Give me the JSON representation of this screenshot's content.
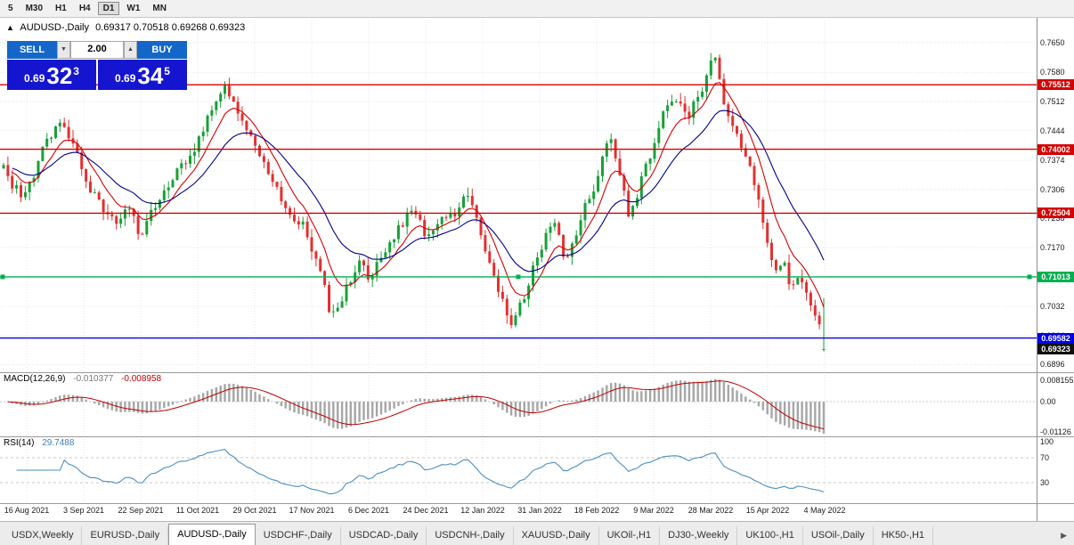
{
  "toolbar": {
    "timeframes": [
      "5",
      "M30",
      "H1",
      "H4",
      "D1",
      "W1",
      "MN"
    ],
    "active": "D1"
  },
  "header": {
    "arrow": "▲",
    "symbol": "AUDUSD-,Daily",
    "ohlc": "0.69317 0.70518 0.69268 0.69323"
  },
  "trade_panel": {
    "sell_label": "SELL",
    "buy_label": "BUY",
    "volume": "2.00",
    "spinner_down": "▼",
    "spinner_up": "▲",
    "sell_price_small": "0.69",
    "sell_price_big": "32",
    "sell_price_sup": "3",
    "buy_price_small": "0.69",
    "buy_price_big": "34",
    "buy_price_sup": "5"
  },
  "price_axis": {
    "labels": [
      {
        "text": "0.7650",
        "price": 0.765
      },
      {
        "text": "0.7580",
        "price": 0.758
      },
      {
        "text": "0.7512",
        "price": 0.7512
      },
      {
        "text": "0.7444",
        "price": 0.7444
      },
      {
        "text": "0.7374",
        "price": 0.7374
      },
      {
        "text": "0.7306",
        "price": 0.7306
      },
      {
        "text": "0.7238",
        "price": 0.7238
      },
      {
        "text": "0.7170",
        "price": 0.717
      },
      {
        "text": "0.7102",
        "price": 0.7102
      },
      {
        "text": "0.7032",
        "price": 0.7032
      },
      {
        "text": "0.6964",
        "price": 0.6964
      },
      {
        "text": "0.6896",
        "price": 0.6896
      }
    ]
  },
  "levels": [
    {
      "label": "0.75512",
      "price": 0.75512,
      "color": "#d40000",
      "handles": false
    },
    {
      "label": "0.74002",
      "price": 0.74002,
      "color": "#d40000",
      "handles": false
    },
    {
      "label": "0.72504",
      "price": 0.72504,
      "color": "#d40000",
      "handles": false
    },
    {
      "label": "0.71013",
      "price": 0.71013,
      "color": "#00b050",
      "handles": true
    },
    {
      "label": "0.69582",
      "price": 0.69582,
      "color": "#0000e8",
      "handles": false
    }
  ],
  "current_price": {
    "label": "0.69323",
    "price": 0.69323,
    "color": "#101010"
  },
  "macd_panel": {
    "title": "MACD(12,26,9)",
    "value_main": "-0.010377",
    "value_signal": "-0.008958",
    "axis": [
      "0.008155",
      "0.00",
      "-0.01126"
    ]
  },
  "rsi_panel": {
    "title": "RSI(14)",
    "value": "29.7488",
    "axis": [
      "100",
      "70",
      "30"
    ]
  },
  "dates": [
    "16 Aug 2021",
    "3 Sep 2021",
    "22 Sep 2021",
    "11 Oct 2021",
    "29 Oct 2021",
    "17 Nov 2021",
    "6 Dec 2021",
    "24 Dec 2021",
    "12 Jan 2022",
    "31 Jan 2022",
    "18 Feb 2022",
    "9 Mar 2022",
    "28 Mar 2022",
    "15 Apr 2022",
    "4 May 2022"
  ],
  "tabs": {
    "items": [
      "USDX,Weekly",
      "EURUSD-,Daily",
      "AUDUSD-,Daily",
      "USDCHF-,Daily",
      "USDCAD-,Daily",
      "USDCNH-,Daily",
      "XAUUSD-,Daily",
      "UKOil-,H1",
      "DJ30-,Weekly",
      "UK100-,H1",
      "USOil-,Daily",
      "HK50-,H1"
    ],
    "active_index": 2,
    "scroll_right_icon": "▶"
  },
  "colors": {
    "bull": "#18a038",
    "bear": "#e33030",
    "macd_hist": "#a6a6a6",
    "macd_signal": "#c00000",
    "rsi_line": "#4a8fc2",
    "grid": "#e6e6e6"
  },
  "chart_data": {
    "type": "candlestick",
    "title": "AUDUSD-,Daily",
    "symbol": "AUDUSD",
    "timeframe": "Daily",
    "candle_count": 190,
    "price_range": {
      "top": 0.7708,
      "bottom": 0.6878
    },
    "last_candle": {
      "open": 0.69317,
      "high": 0.70518,
      "low": 0.69268,
      "close": 0.69323
    },
    "moving_averages": [
      {
        "period": 8,
        "color": "#d40000"
      },
      {
        "period": 20,
        "color": "#000089"
      }
    ],
    "indicators": [
      {
        "name": "MACD",
        "params": "12,26,9",
        "values": [
          -0.010377,
          -0.008958
        ]
      },
      {
        "name": "RSI",
        "params": "14",
        "value": 29.7488
      }
    ],
    "price_path": [
      [
        0.0,
        0.7355
      ],
      [
        0.012,
        0.7308
      ],
      [
        0.028,
        0.7292
      ],
      [
        0.048,
        0.7398
      ],
      [
        0.069,
        0.7462
      ],
      [
        0.085,
        0.7405
      ],
      [
        0.1,
        0.7332
      ],
      [
        0.12,
        0.7258
      ],
      [
        0.138,
        0.7225
      ],
      [
        0.152,
        0.7282
      ],
      [
        0.166,
        0.7188
      ],
      [
        0.182,
        0.7258
      ],
      [
        0.207,
        0.7338
      ],
      [
        0.232,
        0.7398
      ],
      [
        0.252,
        0.7485
      ],
      [
        0.268,
        0.7548
      ],
      [
        0.282,
        0.7498
      ],
      [
        0.302,
        0.7432
      ],
      [
        0.322,
        0.7352
      ],
      [
        0.345,
        0.7258
      ],
      [
        0.366,
        0.7222
      ],
      [
        0.386,
        0.7118
      ],
      [
        0.4,
        0.7002
      ],
      [
        0.416,
        0.7062
      ],
      [
        0.432,
        0.7138
      ],
      [
        0.446,
        0.7098
      ],
      [
        0.462,
        0.7158
      ],
      [
        0.483,
        0.7218
      ],
      [
        0.5,
        0.7268
      ],
      [
        0.516,
        0.7192
      ],
      [
        0.532,
        0.7232
      ],
      [
        0.552,
        0.7252
      ],
      [
        0.566,
        0.7302
      ],
      [
        0.582,
        0.7198
      ],
      [
        0.6,
        0.7092
      ],
      [
        0.618,
        0.6988
      ],
      [
        0.632,
        0.7042
      ],
      [
        0.652,
        0.7152
      ],
      [
        0.67,
        0.7238
      ],
      [
        0.686,
        0.7132
      ],
      [
        0.702,
        0.7232
      ],
      [
        0.722,
        0.7322
      ],
      [
        0.74,
        0.7432
      ],
      [
        0.753,
        0.7332
      ],
      [
        0.763,
        0.7232
      ],
      [
        0.776,
        0.7322
      ],
      [
        0.791,
        0.7402
      ],
      [
        0.806,
        0.7492
      ],
      [
        0.821,
        0.7512
      ],
      [
        0.836,
        0.7482
      ],
      [
        0.856,
        0.7562
      ],
      [
        0.866,
        0.7625
      ],
      [
        0.878,
        0.7502
      ],
      [
        0.891,
        0.7442
      ],
      [
        0.901,
        0.7402
      ],
      [
        0.913,
        0.7342
      ],
      [
        0.923,
        0.7252
      ],
      [
        0.933,
        0.7162
      ],
      [
        0.941,
        0.7112
      ],
      [
        0.951,
        0.7142
      ],
      [
        0.959,
        0.7062
      ],
      [
        0.969,
        0.7098
      ],
      [
        0.982,
        0.7048
      ],
      [
        0.996,
        0.6975
      ],
      [
        1.0,
        0.69323
      ]
    ]
  }
}
